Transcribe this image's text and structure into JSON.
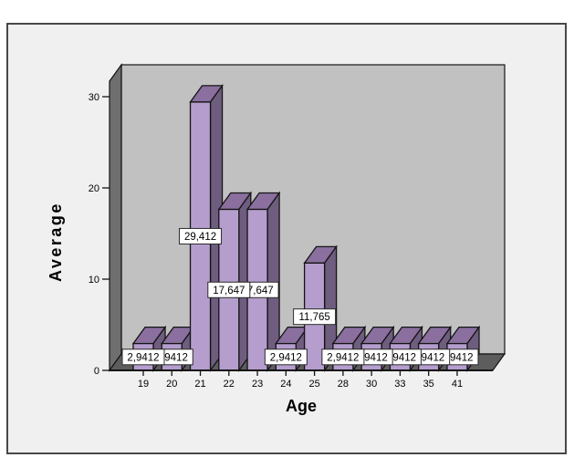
{
  "window": {
    "background": "#ffffff"
  },
  "chart_data": {
    "type": "bar",
    "style": "3d-column",
    "title": "",
    "xlabel": "Age",
    "ylabel": "Average",
    "categories": [
      "19",
      "20",
      "21",
      "22",
      "23",
      "24",
      "25",
      "28",
      "30",
      "33",
      "35",
      "41"
    ],
    "values": [
      2.9412,
      2.9412,
      29.412,
      17.647,
      17.647,
      2.9412,
      11.765,
      2.9412,
      2.9412,
      2.9412,
      2.9412,
      2.9412
    ],
    "bar_labels": [
      "2,9412",
      "2,9412",
      "29,412",
      "17,647",
      "17,647",
      "2,9412",
      "11,765",
      "2,9412",
      "2,9412",
      "2,9412",
      "2,9412",
      "2,9412"
    ],
    "bar_labels_visible_after_overlap": [
      "2,9412",
      ",9412",
      "29,412",
      "17,647",
      "7,647",
      "2,9412",
      "11,765",
      "2,9412",
      ",9412",
      ",9412",
      ",9412",
      ",9412"
    ],
    "y_ticks": [
      "0",
      "10",
      "20",
      "30"
    ],
    "ylim": [
      0,
      33
    ],
    "grid": false,
    "legend": null,
    "decimal_separator": ",",
    "colors": {
      "panel_bg": "#f0f0f0",
      "panel_border": "#484848",
      "wall_back": "#c1c1c1",
      "wall_left": "#6f6f6f",
      "floor": "#5d5d5d",
      "bar_front": "#b59ecd",
      "bar_top": "#8a6f9f",
      "bar_side": "#6f5d80",
      "outline": "#141414",
      "label_box_bg": "#ffffff",
      "label_box_border": "#2b2b2b",
      "text": "#000000"
    }
  }
}
